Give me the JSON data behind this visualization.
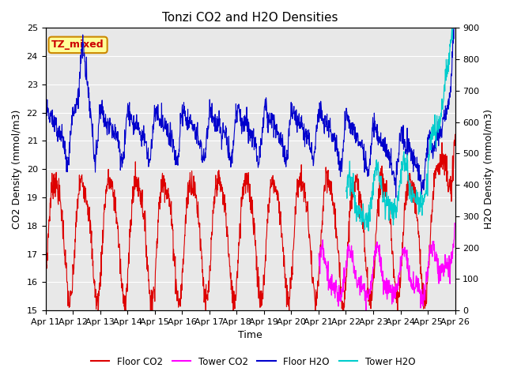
{
  "title": "Tonzi CO2 and H2O Densities",
  "xlabel": "Time",
  "ylabel_left": "CO2 Density (mmol/m3)",
  "ylabel_right": "H2O Density (mmol/m3)",
  "co2_ylim": [
    15.0,
    25.0
  ],
  "h2o_ylim": [
    0,
    900
  ],
  "co2_yticks": [
    15.0,
    16.0,
    17.0,
    18.0,
    19.0,
    20.0,
    21.0,
    22.0,
    23.0,
    24.0,
    25.0
  ],
  "h2o_yticks": [
    0,
    100,
    200,
    300,
    400,
    500,
    600,
    700,
    800,
    900
  ],
  "xtick_labels": [
    "Apr 11",
    "Apr 12",
    "Apr 13",
    "Apr 14",
    "Apr 15",
    "Apr 16",
    "Apr 17",
    "Apr 18",
    "Apr 19",
    "Apr 20",
    "Apr 21",
    "Apr 22",
    "Apr 23",
    "Apr 24",
    "Apr 25",
    "Apr 26"
  ],
  "annotation_text": "TZ_mixed",
  "annotation_color": "#cc0000",
  "annotation_bg": "#ffff99",
  "annotation_border": "#cc8800",
  "floor_co2_color": "#dd0000",
  "tower_co2_color": "#ff00ff",
  "floor_h2o_color": "#0000cc",
  "tower_h2o_color": "#00cccc",
  "bg_color": "#e8e8e8",
  "legend_labels": [
    "Floor CO2",
    "Tower CO2",
    "Floor H2O",
    "Tower H2O"
  ]
}
